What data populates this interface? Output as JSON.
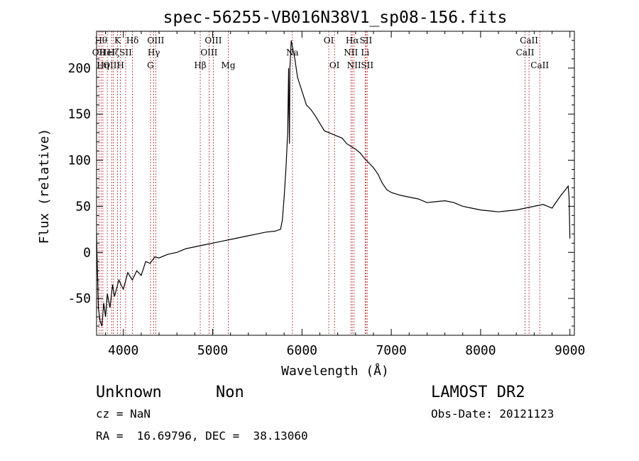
{
  "chart_data": {
    "type": "line",
    "title": "spec-56255-VB016N38V1_sp08-156.fits",
    "xlabel": "Wavelength (Å)",
    "ylabel": "Flux (relative)",
    "xlim": [
      3700,
      9050
    ],
    "ylim": [
      -90,
      240
    ],
    "x_ticks": [
      4000,
      5000,
      6000,
      7000,
      8000,
      9000
    ],
    "y_ticks": [
      -50,
      0,
      50,
      100,
      150,
      200
    ],
    "grid": false,
    "series": [
      {
        "points": [
          [
            3700,
            20
          ],
          [
            3720,
            -60
          ],
          [
            3740,
            -75
          ],
          [
            3760,
            -80
          ],
          [
            3780,
            -55
          ],
          [
            3800,
            -70
          ],
          [
            3820,
            -45
          ],
          [
            3850,
            -60
          ],
          [
            3880,
            -35
          ],
          [
            3900,
            -48
          ],
          [
            3950,
            -30
          ],
          [
            4000,
            -40
          ],
          [
            4050,
            -22
          ],
          [
            4100,
            -30
          ],
          [
            4150,
            -20
          ],
          [
            4200,
            -25
          ],
          [
            4250,
            -10
          ],
          [
            4300,
            -12
          ],
          [
            4350,
            -5
          ],
          [
            4400,
            -6
          ],
          [
            4500,
            -2
          ],
          [
            4600,
            0
          ],
          [
            4700,
            4
          ],
          [
            4800,
            6
          ],
          [
            4900,
            8
          ],
          [
            5000,
            10
          ],
          [
            5100,
            12
          ],
          [
            5200,
            14
          ],
          [
            5300,
            16
          ],
          [
            5400,
            18
          ],
          [
            5500,
            20
          ],
          [
            5600,
            22
          ],
          [
            5700,
            23
          ],
          [
            5760,
            25
          ],
          [
            5780,
            35
          ],
          [
            5800,
            60
          ],
          [
            5820,
            90
          ],
          [
            5840,
            130
          ],
          [
            5850,
            200
          ],
          [
            5855,
            150
          ],
          [
            5860,
            118
          ],
          [
            5865,
            200
          ],
          [
            5880,
            230
          ],
          [
            5900,
            220
          ],
          [
            5920,
            210
          ],
          [
            5950,
            190
          ],
          [
            6000,
            175
          ],
          [
            6050,
            160
          ],
          [
            6100,
            155
          ],
          [
            6150,
            148
          ],
          [
            6200,
            140
          ],
          [
            6250,
            132
          ],
          [
            6300,
            130
          ],
          [
            6350,
            128
          ],
          [
            6400,
            126
          ],
          [
            6450,
            124
          ],
          [
            6500,
            118
          ],
          [
            6550,
            115
          ],
          [
            6600,
            112
          ],
          [
            6650,
            108
          ],
          [
            6700,
            102
          ],
          [
            6750,
            97
          ],
          [
            6800,
            92
          ],
          [
            6850,
            85
          ],
          [
            6900,
            75
          ],
          [
            6950,
            68
          ],
          [
            7000,
            65
          ],
          [
            7100,
            62
          ],
          [
            7200,
            60
          ],
          [
            7300,
            58
          ],
          [
            7400,
            54
          ],
          [
            7500,
            55
          ],
          [
            7600,
            56
          ],
          [
            7700,
            54
          ],
          [
            7800,
            50
          ],
          [
            7900,
            48
          ],
          [
            8000,
            46
          ],
          [
            8100,
            45
          ],
          [
            8200,
            44
          ],
          [
            8300,
            45
          ],
          [
            8400,
            46
          ],
          [
            8500,
            48
          ],
          [
            8600,
            50
          ],
          [
            8700,
            52
          ],
          [
            8750,
            50
          ],
          [
            8800,
            48
          ],
          [
            8850,
            55
          ],
          [
            8900,
            62
          ],
          [
            8950,
            68
          ],
          [
            8980,
            72
          ],
          [
            8990,
            60
          ],
          [
            9000,
            15
          ]
        ]
      }
    ],
    "lines": [
      {
        "wl": 3727,
        "labels": [
          {
            "text": "OII",
            "row": 1
          }
        ]
      },
      {
        "wl": 3750,
        "labels": [
          {
            "text": "Hθ",
            "row": 0
          }
        ]
      },
      {
        "wl": 3771,
        "labels": [
          {
            "text": "Hη",
            "row": 2
          }
        ]
      },
      {
        "wl": 3820,
        "labels": [
          {
            "text": "HeI",
            "row": 1
          }
        ]
      },
      {
        "wl": 3869,
        "labels": [
          {
            "text": "OIII",
            "row": 2
          }
        ]
      },
      {
        "wl": 3889,
        "labels": [
          {
            "text": "Hζ",
            "row": 1
          }
        ]
      },
      {
        "wl": 3934,
        "labels": [
          {
            "text": "K",
            "row": 0
          }
        ]
      },
      {
        "wl": 3968,
        "labels": [
          {
            "text": "H",
            "row": 2
          }
        ]
      },
      {
        "wl": 4026,
        "labels": [
          {
            "text": "SII",
            "row": 1
          }
        ]
      },
      {
        "wl": 4102,
        "labels": [
          {
            "text": "Hδ",
            "row": 0
          }
        ]
      },
      {
        "wl": 4304,
        "labels": [
          {
            "text": "G",
            "row": 2
          }
        ]
      },
      {
        "wl": 4341,
        "labels": [
          {
            "text": "Hγ",
            "row": 1
          }
        ]
      },
      {
        "wl": 4363,
        "labels": [
          {
            "text": "OIII",
            "row": 0
          }
        ]
      },
      {
        "wl": 4861,
        "labels": [
          {
            "text": "Hβ",
            "row": 2
          }
        ]
      },
      {
        "wl": 4959,
        "labels": [
          {
            "text": "OIII",
            "row": 1
          }
        ]
      },
      {
        "wl": 5007,
        "labels": [
          {
            "text": "OIII",
            "row": 0
          }
        ]
      },
      {
        "wl": 5175,
        "labels": [
          {
            "text": "Mg",
            "row": 2
          }
        ]
      },
      {
        "wl": 5893,
        "labels": [
          {
            "text": "Na",
            "row": 1
          }
        ]
      },
      {
        "wl": 6300,
        "labels": [
          {
            "text": "OI",
            "row": 0
          }
        ]
      },
      {
        "wl": 6364,
        "labels": [
          {
            "text": "OI",
            "row": 2
          }
        ]
      },
      {
        "wl": 6548,
        "labels": [
          {
            "text": "NII",
            "row": 1
          }
        ]
      },
      {
        "wl": 6563,
        "labels": [
          {
            "text": "Hα",
            "row": 0
          }
        ]
      },
      {
        "wl": 6583,
        "labels": [
          {
            "text": "NII",
            "row": 2
          }
        ]
      },
      {
        "wl": 6707,
        "labels": [
          {
            "text": "Li",
            "row": 1
          }
        ]
      },
      {
        "wl": 6716,
        "labels": [
          {
            "text": "SII",
            "row": 0
          }
        ]
      },
      {
        "wl": 6731,
        "labels": [
          {
            "text": "SII",
            "row": 2
          }
        ]
      },
      {
        "wl": 8498,
        "labels": [
          {
            "text": "CaII",
            "row": 1
          }
        ]
      },
      {
        "wl": 8542,
        "labels": [
          {
            "text": "CaII",
            "row": 0
          }
        ]
      },
      {
        "wl": 8662,
        "labels": [
          {
            "text": "CaII",
            "row": 2
          }
        ]
      }
    ]
  },
  "footer": {
    "class_label": "Unknown",
    "subclass_label": "Non",
    "survey": "LAMOST DR2",
    "cz": "cz = NaN",
    "obs_date": "Obs-Date: 20121123",
    "coords": "RA =  16.69796, DEC =  38.13060"
  },
  "colors": {
    "line_marker": "#b22222",
    "spectrum": "#000000"
  }
}
